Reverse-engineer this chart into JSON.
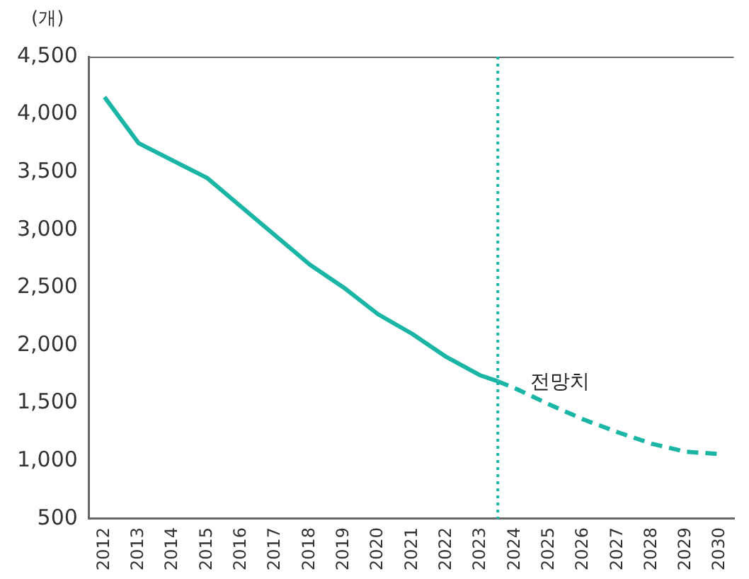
{
  "chart_data": {
    "type": "line",
    "ylabel": "(개)",
    "xlim": [
      2011.55,
      2030.4
    ],
    "xticks": [
      {
        "value": 2012,
        "label": "2012"
      },
      {
        "value": 2013,
        "label": "2013"
      },
      {
        "value": 2014,
        "label": "2014"
      },
      {
        "value": 2015,
        "label": "2015"
      },
      {
        "value": 2016,
        "label": "2016"
      },
      {
        "value": 2017,
        "label": "2017"
      },
      {
        "value": 2018,
        "label": "2018"
      },
      {
        "value": 2019,
        "label": "2019"
      },
      {
        "value": 2020,
        "label": "2020"
      },
      {
        "value": 2021,
        "label": "2021"
      },
      {
        "value": 2022,
        "label": "2022"
      },
      {
        "value": 2023,
        "label": "2023"
      },
      {
        "value": 2024,
        "label": "2024"
      },
      {
        "value": 2025,
        "label": "2025"
      },
      {
        "value": 2026,
        "label": "2026"
      },
      {
        "value": 2027,
        "label": "2027"
      },
      {
        "value": 2028,
        "label": "2028"
      },
      {
        "value": 2029,
        "label": "2029"
      },
      {
        "value": 2030,
        "label": "2030"
      }
    ],
    "ylim": [
      500,
      4500
    ],
    "yticks": [
      {
        "value": 500,
        "label": "500"
      },
      {
        "value": 1000,
        "label": "1,000"
      },
      {
        "value": 1500,
        "label": "1,500"
      },
      {
        "value": 2000,
        "label": "2,000"
      },
      {
        "value": 2500,
        "label": "2,500"
      },
      {
        "value": 3000,
        "label": "3,000"
      },
      {
        "value": 3500,
        "label": "3,500"
      },
      {
        "value": 4000,
        "label": "4,000"
      },
      {
        "value": 4500,
        "label": "4,500"
      }
    ],
    "grid": false,
    "legend": false,
    "marker": "none",
    "series": [
      {
        "color": "#1ab5a5",
        "line_style": "solid",
        "x": [
          2012,
          2013,
          2014,
          2015,
          2016,
          2017,
          2018,
          2019,
          2020,
          2021,
          2022,
          2023,
          2023.5
        ],
        "values": [
          4150,
          3750,
          3600,
          3450,
          3200,
          2950,
          2700,
          2500,
          2270,
          2100,
          1900,
          1740,
          1690
        ]
      },
      {
        "color": "#1ab5a5",
        "line_style": "dashed",
        "x": [
          2023.5,
          2024,
          2025,
          2026,
          2027,
          2028,
          2029,
          2030
        ],
        "values": [
          1690,
          1630,
          1490,
          1360,
          1250,
          1150,
          1080,
          1060
        ]
      }
    ],
    "ref_lines": [
      {
        "axis": "x",
        "value": 2023.5,
        "color": "#1ab5a5",
        "line_style": "dotted"
      }
    ],
    "annotations": [
      "전망치"
    ]
  }
}
